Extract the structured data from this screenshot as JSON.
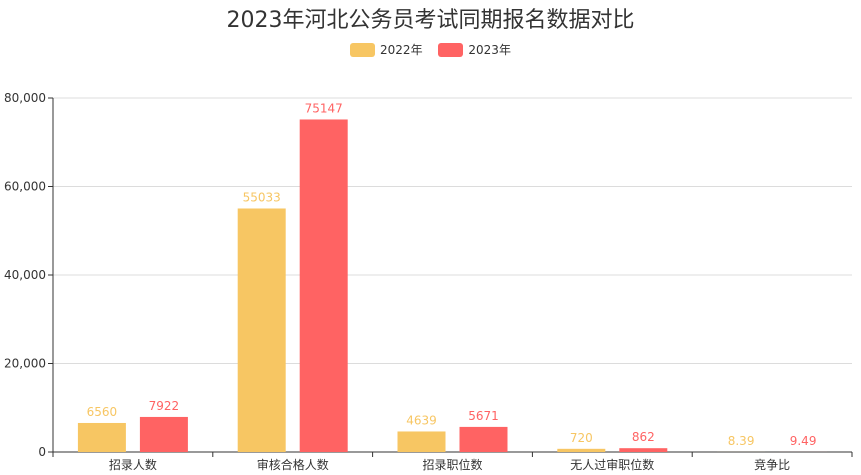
{
  "title": "2023年河北公务员考试同期报名数据对比",
  "colors": {
    "series_2022": "#f7c663",
    "series_2023": "#ff6363"
  },
  "chart_data": {
    "type": "bar",
    "title": "2023年河北公务员考试同期报名数据对比",
    "categories": [
      "招录人数",
      "审核合格人数",
      "招录职位数",
      "无人过审职位数",
      "竞争比"
    ],
    "series": [
      {
        "name": "2022年",
        "values": [
          6560,
          55033,
          4639,
          720,
          8.39
        ],
        "labels": [
          "6560",
          "55033",
          "4639",
          "720",
          "8.39"
        ]
      },
      {
        "name": "2023年",
        "values": [
          7922,
          75147,
          5671,
          862,
          9.49
        ],
        "labels": [
          "7922",
          "75147",
          "5671",
          "862",
          "9.49"
        ]
      }
    ],
    "ylim": [
      0,
      80000
    ],
    "yticks": [
      "0",
      "20,000",
      "40,000",
      "60,000",
      "80,000"
    ],
    "ytick_values": [
      0,
      20000,
      40000,
      60000,
      80000
    ],
    "grid": true,
    "legend_position": "top-center"
  }
}
